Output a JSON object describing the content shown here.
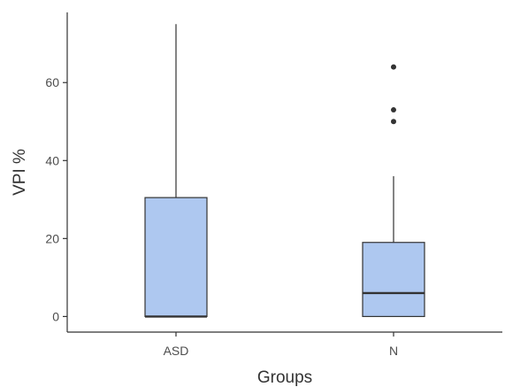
{
  "chart_data": {
    "type": "boxplot",
    "xlabel": "Groups",
    "ylabel": "VPI %",
    "ylim": [
      -4,
      78
    ],
    "y_ticks": [
      0,
      20,
      40,
      60
    ],
    "categories": [
      "ASD",
      "N"
    ],
    "boxes": [
      {
        "category": "ASD",
        "min": 0,
        "q1": 0,
        "median": 0,
        "q3": 30.5,
        "max": 75,
        "outliers": []
      },
      {
        "category": "N",
        "min": 0,
        "q1": 0,
        "median": 6,
        "q3": 19,
        "max": 36,
        "outliers": [
          50,
          53,
          64
        ]
      }
    ],
    "colors": {
      "box_fill": "#aec8f0",
      "box_stroke": "#333333",
      "axis": "#333333",
      "outlier": "#333333"
    },
    "grid": false,
    "legend": "none"
  }
}
